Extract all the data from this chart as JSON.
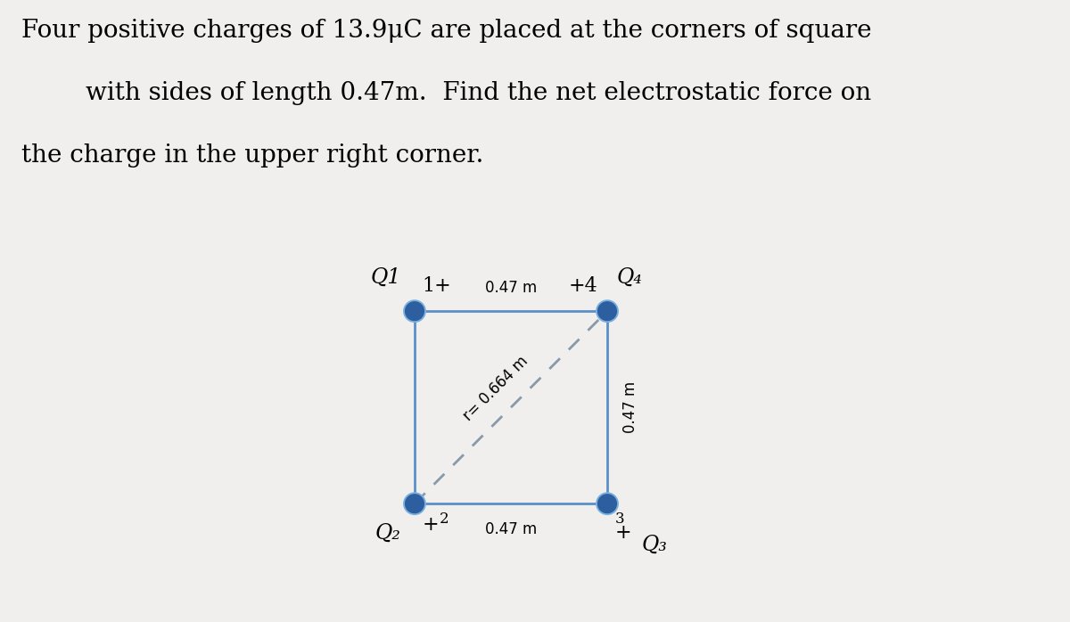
{
  "title_line1": "Four positive charges of 13.9μC are placed at the corners of square",
  "title_line2": "with sides of length 0.47m.  Find the net electrostatic force on",
  "title_line3": "the charge in the upper right corner.",
  "background_color": "#f0efed",
  "square_color": "#5b8fc9",
  "dot_color": "#2d5fa0",
  "dot_outline_color": "#7ab0dd",
  "side_label": "0.47 m",
  "diagonal_label": "r= 0.664 m",
  "right_side_label": "0.47 m",
  "bottom_label": "0.47 m",
  "figsize": [
    12.0,
    6.98
  ],
  "dpi": 100
}
